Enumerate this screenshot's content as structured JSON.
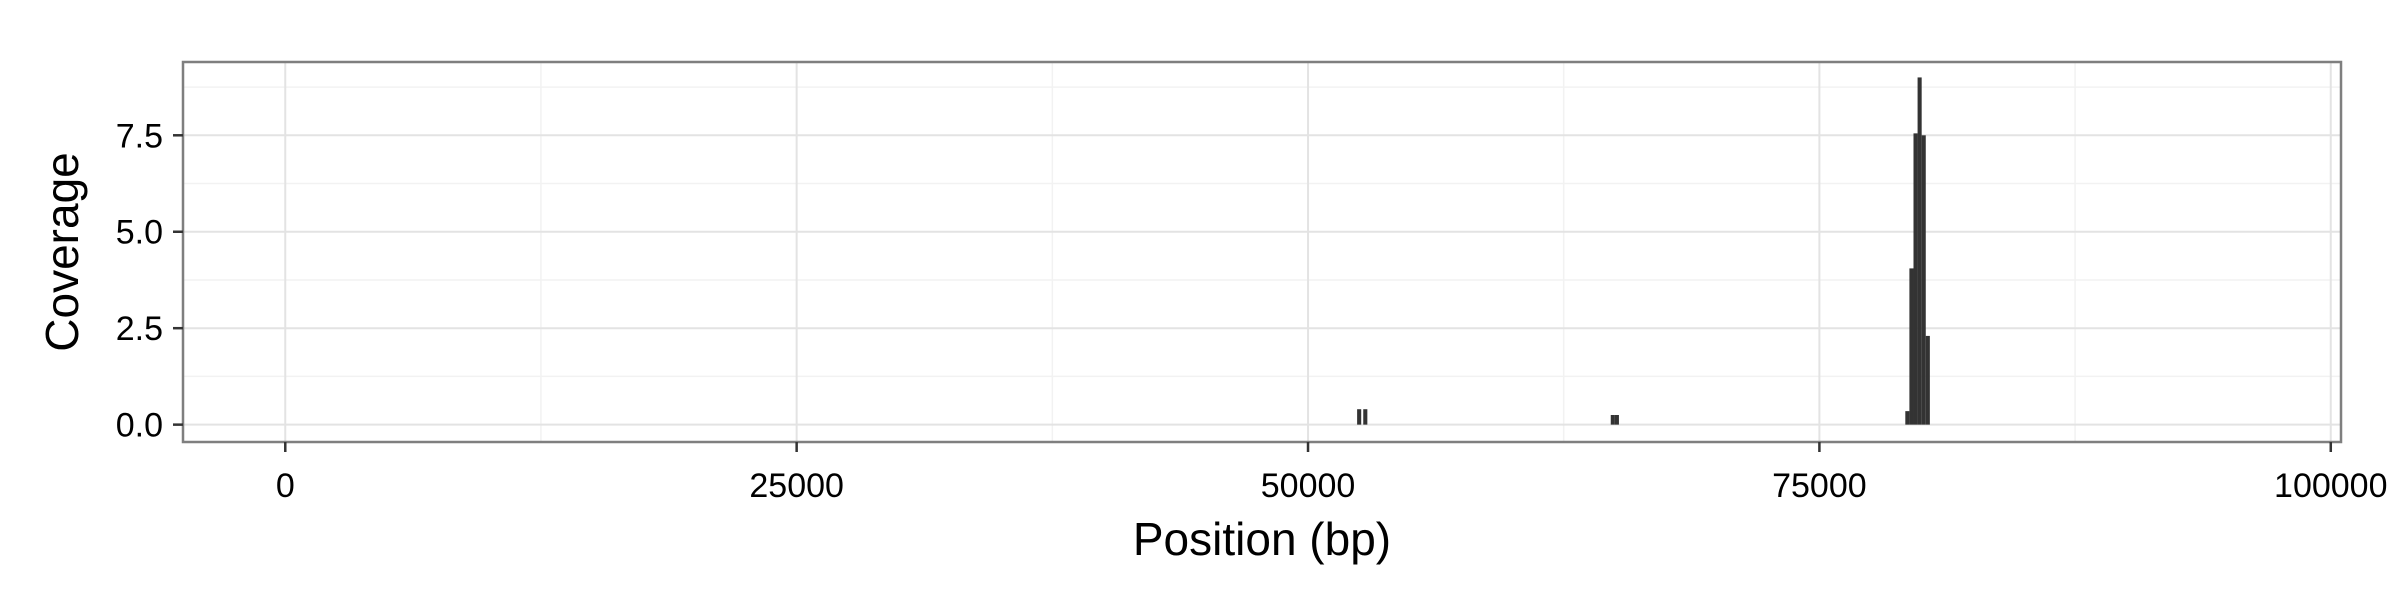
{
  "chart_data": {
    "type": "bar",
    "title": "",
    "xlabel": "Position (bp)",
    "ylabel": "Coverage",
    "xlim": [
      -5000,
      100500
    ],
    "ylim": [
      -0.45,
      9.4
    ],
    "x_ticks": [
      0,
      25000,
      50000,
      75000,
      100000
    ],
    "x_tick_labels": [
      "0",
      "25000",
      "50000",
      "75000",
      "100000"
    ],
    "x_minor_ticks": [
      12500,
      37500,
      62500,
      87500
    ],
    "y_ticks": [
      0,
      2.5,
      5,
      7.5
    ],
    "y_tick_labels": [
      "0.0",
      "2.5",
      "5.0",
      "7.5"
    ],
    "y_minor_ticks": [
      1.25,
      3.75,
      6.25,
      8.75
    ],
    "grid": true,
    "legend": "none",
    "bar_color": "#333333",
    "bar_width": 200,
    "x": [
      52500,
      52800,
      64900,
      65100,
      79300,
      79500,
      79700,
      79900,
      80100,
      80300
    ],
    "values": [
      0.4,
      0.4,
      0.25,
      0.25,
      0.35,
      4.05,
      7.55,
      9.0,
      7.5,
      2.3
    ]
  }
}
